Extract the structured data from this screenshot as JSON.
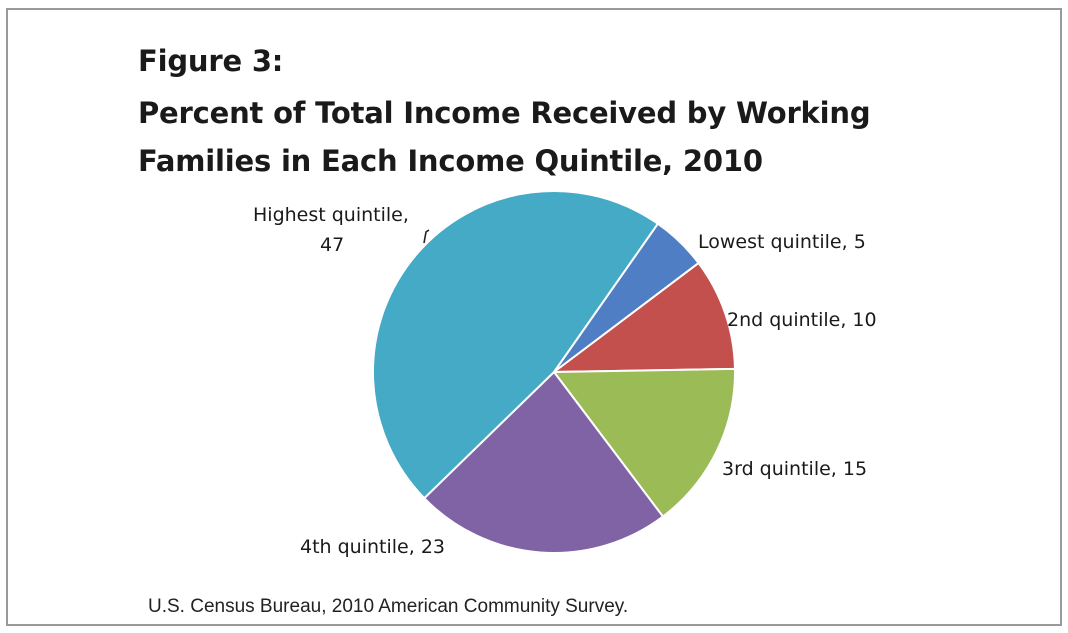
{
  "figure": {
    "title_line1": "Figure 3:",
    "title_line2": "Percent of Total Income Received by Working",
    "title_line3": "Families in Each Income Quintile, 2010",
    "source": "U.S. Census Bureau, 2010 American Community Survey."
  },
  "chart_data": {
    "type": "pie",
    "title": "Percent of Total Income Received by Working Families in Each Income Quintile, 2010",
    "slices": [
      {
        "label": "Lowest quintile, 5",
        "name": "Lowest quintile",
        "value": 5,
        "color": "#4f7ec4"
      },
      {
        "label": "2nd quintile, 10",
        "name": "2nd quintile",
        "value": 10,
        "color": "#c4504d"
      },
      {
        "label": "3rd quintile, 15",
        "name": "3rd quintile",
        "value": 15,
        "color": "#9bbb57"
      },
      {
        "label": "4th quintile, 23",
        "name": "4th quintile",
        "value": 23,
        "color": "#7f63a4"
      },
      {
        "label_line1": "Highest quintile,",
        "label_line2": "47",
        "name": "Highest quintile",
        "value": 47,
        "color": "#44aac6"
      }
    ]
  }
}
